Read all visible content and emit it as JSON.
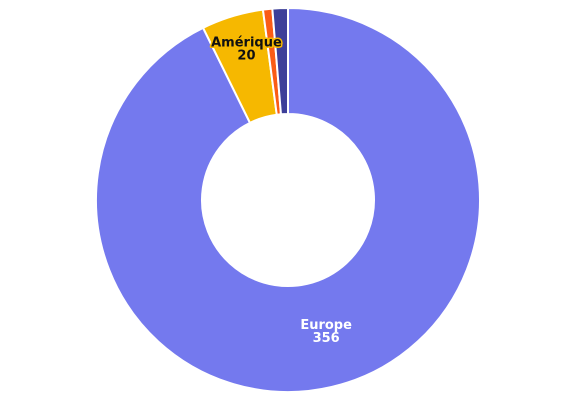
{
  "chart_data": {
    "type": "pie",
    "title": "",
    "donut": true,
    "slices": [
      {
        "name": "Europe",
        "value": 356,
        "color": "#7479ee",
        "show_label": true
      },
      {
        "name": "Amérique",
        "value": 20,
        "color": "#f6b800",
        "show_label": true
      },
      {
        "name": "",
        "value": 3,
        "color": "#fa5c16",
        "show_label": false
      },
      {
        "name": "",
        "value": 5,
        "color": "#3d3f99",
        "show_label": false
      }
    ]
  }
}
